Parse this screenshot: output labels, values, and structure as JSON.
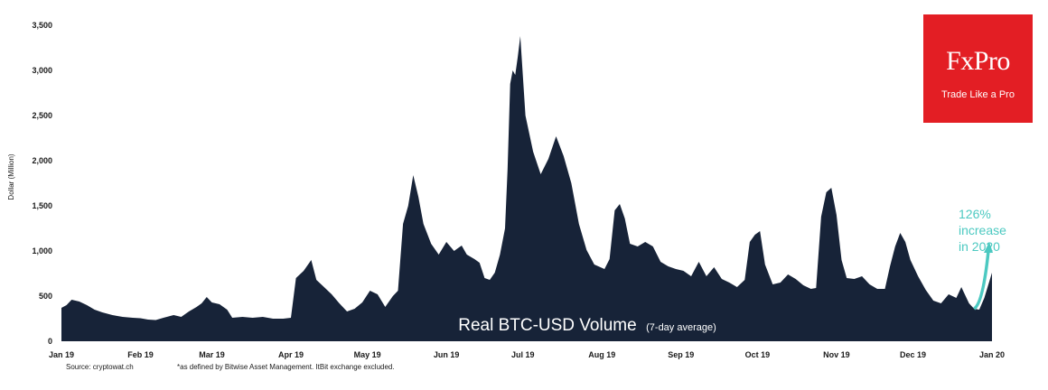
{
  "chart_data": {
    "type": "area",
    "title": "Real BTC-USD Volume",
    "subtitle": "(7-day average)",
    "ylabel": "Dollar (Million)",
    "ylim": [
      0,
      3500
    ],
    "yticks": [
      0,
      500,
      1000,
      1500,
      2000,
      2500,
      3000,
      3500
    ],
    "ytick_labels": [
      "0",
      "500",
      "1,000",
      "1,500",
      "2,000",
      "2,500",
      "3,000",
      "3,500"
    ],
    "xlim": [
      "2019-01-01",
      "2020-01-01"
    ],
    "xticks": [
      "2019-01-01",
      "2019-02-01",
      "2019-03-01",
      "2019-04-01",
      "2019-05-01",
      "2019-06-01",
      "2019-07-01",
      "2019-08-01",
      "2019-09-01",
      "2019-10-01",
      "2019-11-01",
      "2019-12-01",
      "2020-01-01"
    ],
    "xtick_labels": [
      "Jan 19",
      "Feb 19",
      "Mar 19",
      "Apr 19",
      "May 19",
      "Jun 19",
      "Jul 19",
      "Aug 19",
      "Sep 19",
      "Oct 19",
      "Nov 19",
      "Dec 19",
      "Jan 20"
    ],
    "grid": false,
    "fill_color": "#172338",
    "annotation_color": "#4cc9c1",
    "series": [
      {
        "points": [
          [
            "2019-01-01",
            370
          ],
          [
            "2019-01-03",
            400
          ],
          [
            "2019-01-05",
            460
          ],
          [
            "2019-01-08",
            440
          ],
          [
            "2019-01-11",
            400
          ],
          [
            "2019-01-14",
            350
          ],
          [
            "2019-01-17",
            320
          ],
          [
            "2019-01-21",
            290
          ],
          [
            "2019-01-25",
            270
          ],
          [
            "2019-01-29",
            260
          ],
          [
            "2019-02-01",
            255
          ],
          [
            "2019-02-04",
            240
          ],
          [
            "2019-02-07",
            235
          ],
          [
            "2019-02-10",
            260
          ],
          [
            "2019-02-14",
            290
          ],
          [
            "2019-02-17",
            270
          ],
          [
            "2019-02-20",
            330
          ],
          [
            "2019-02-23",
            380
          ],
          [
            "2019-02-25",
            420
          ],
          [
            "2019-02-27",
            490
          ],
          [
            "2019-03-01",
            430
          ],
          [
            "2019-03-04",
            410
          ],
          [
            "2019-03-07",
            350
          ],
          [
            "2019-03-09",
            260
          ],
          [
            "2019-03-13",
            270
          ],
          [
            "2019-03-17",
            260
          ],
          [
            "2019-03-21",
            270
          ],
          [
            "2019-03-25",
            250
          ],
          [
            "2019-03-29",
            250
          ],
          [
            "2019-04-01",
            260
          ],
          [
            "2019-04-03",
            700
          ],
          [
            "2019-04-06",
            780
          ],
          [
            "2019-04-09",
            900
          ],
          [
            "2019-04-11",
            680
          ],
          [
            "2019-04-14",
            600
          ],
          [
            "2019-04-17",
            520
          ],
          [
            "2019-04-20",
            420
          ],
          [
            "2019-04-23",
            330
          ],
          [
            "2019-04-26",
            360
          ],
          [
            "2019-04-29",
            430
          ],
          [
            "2019-05-02",
            560
          ],
          [
            "2019-05-05",
            520
          ],
          [
            "2019-05-08",
            380
          ],
          [
            "2019-05-11",
            500
          ],
          [
            "2019-05-13",
            560
          ],
          [
            "2019-05-15",
            1300
          ],
          [
            "2019-05-17",
            1500
          ],
          [
            "2019-05-19",
            1840
          ],
          [
            "2019-05-21",
            1600
          ],
          [
            "2019-05-23",
            1300
          ],
          [
            "2019-05-26",
            1080
          ],
          [
            "2019-05-29",
            960
          ],
          [
            "2019-06-01",
            1100
          ],
          [
            "2019-06-04",
            1000
          ],
          [
            "2019-06-07",
            1060
          ],
          [
            "2019-06-09",
            960
          ],
          [
            "2019-06-12",
            910
          ],
          [
            "2019-06-14",
            870
          ],
          [
            "2019-06-16",
            700
          ],
          [
            "2019-06-18",
            680
          ],
          [
            "2019-06-20",
            760
          ],
          [
            "2019-06-22",
            960
          ],
          [
            "2019-06-24",
            1250
          ],
          [
            "2019-06-25",
            1900
          ],
          [
            "2019-06-26",
            2850
          ],
          [
            "2019-06-27",
            3000
          ],
          [
            "2019-06-28",
            2950
          ],
          [
            "2019-06-29",
            3150
          ],
          [
            "2019-06-30",
            3380
          ],
          [
            "2019-07-02",
            2500
          ],
          [
            "2019-07-05",
            2100
          ],
          [
            "2019-07-08",
            1850
          ],
          [
            "2019-07-11",
            2020
          ],
          [
            "2019-07-14",
            2270
          ],
          [
            "2019-07-17",
            2050
          ],
          [
            "2019-07-20",
            1750
          ],
          [
            "2019-07-23",
            1300
          ],
          [
            "2019-07-26",
            1010
          ],
          [
            "2019-07-29",
            850
          ],
          [
            "2019-08-02",
            800
          ],
          [
            "2019-08-04",
            910
          ],
          [
            "2019-08-06",
            1450
          ],
          [
            "2019-08-08",
            1520
          ],
          [
            "2019-08-10",
            1360
          ],
          [
            "2019-08-12",
            1080
          ],
          [
            "2019-08-15",
            1050
          ],
          [
            "2019-08-18",
            1100
          ],
          [
            "2019-08-21",
            1050
          ],
          [
            "2019-08-24",
            880
          ],
          [
            "2019-08-27",
            830
          ],
          [
            "2019-08-30",
            800
          ],
          [
            "2019-09-02",
            780
          ],
          [
            "2019-09-05",
            720
          ],
          [
            "2019-09-08",
            880
          ],
          [
            "2019-09-11",
            720
          ],
          [
            "2019-09-14",
            820
          ],
          [
            "2019-09-17",
            690
          ],
          [
            "2019-09-20",
            650
          ],
          [
            "2019-09-23",
            600
          ],
          [
            "2019-09-26",
            680
          ],
          [
            "2019-09-28",
            1100
          ],
          [
            "2019-09-30",
            1180
          ],
          [
            "2019-10-02",
            1220
          ],
          [
            "2019-10-04",
            850
          ],
          [
            "2019-10-07",
            630
          ],
          [
            "2019-10-10",
            650
          ],
          [
            "2019-10-13",
            740
          ],
          [
            "2019-10-16",
            690
          ],
          [
            "2019-10-19",
            620
          ],
          [
            "2019-10-22",
            580
          ],
          [
            "2019-10-24",
            590
          ],
          [
            "2019-10-26",
            1380
          ],
          [
            "2019-10-28",
            1650
          ],
          [
            "2019-10-30",
            1700
          ],
          [
            "2019-11-01",
            1400
          ],
          [
            "2019-11-03",
            900
          ],
          [
            "2019-11-05",
            700
          ],
          [
            "2019-11-08",
            690
          ],
          [
            "2019-11-11",
            720
          ],
          [
            "2019-11-14",
            630
          ],
          [
            "2019-11-17",
            580
          ],
          [
            "2019-11-20",
            580
          ],
          [
            "2019-11-22",
            830
          ],
          [
            "2019-11-24",
            1050
          ],
          [
            "2019-11-26",
            1200
          ],
          [
            "2019-11-28",
            1100
          ],
          [
            "2019-11-30",
            900
          ],
          [
            "2019-12-03",
            720
          ],
          [
            "2019-12-06",
            570
          ],
          [
            "2019-12-09",
            450
          ],
          [
            "2019-12-12",
            420
          ],
          [
            "2019-12-15",
            520
          ],
          [
            "2019-12-18",
            480
          ],
          [
            "2019-12-20",
            600
          ],
          [
            "2019-12-23",
            420
          ],
          [
            "2019-12-25",
            360
          ],
          [
            "2019-12-27",
            350
          ],
          [
            "2019-12-29",
            480
          ],
          [
            "2020-01-01",
            760
          ]
        ]
      }
    ],
    "annotation": {
      "x": "2020-01-01",
      "y": 1000,
      "lines": [
        "126%",
        "increase",
        "in 2020"
      ]
    }
  },
  "footer": {
    "source": "Source: cryptowat.ch",
    "note": "*as defined by Bitwise Asset Management. ItBit exchange excluded."
  },
  "logo": {
    "name": "FxPro",
    "tagline": "Trade Like a Pro"
  }
}
